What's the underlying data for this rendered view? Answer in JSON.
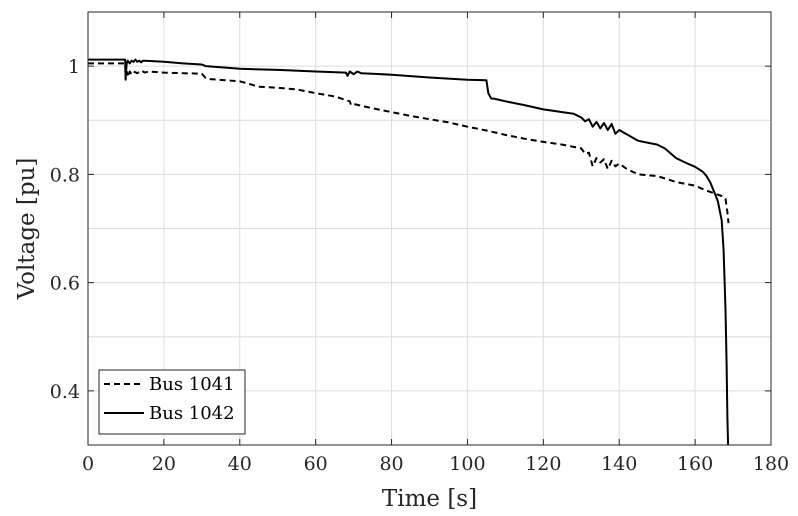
{
  "chart_data": {
    "type": "line",
    "title": "",
    "xlabel": "Time [s]",
    "ylabel": "Voltage [pu]",
    "xlim": [
      0,
      180
    ],
    "ylim": [
      0.3,
      1.1
    ],
    "xticks": [
      "0",
      "20",
      "40",
      "60",
      "80",
      "100",
      "120",
      "140",
      "160",
      "180"
    ],
    "yticks": [
      "0.4",
      "0.6",
      "0.8",
      "1"
    ],
    "grid": true,
    "legend_position": "bottom-left",
    "series": [
      {
        "name": "Bus 1041",
        "style": "dashed",
        "color": "#000000",
        "x": [
          0,
          9.8,
          9.9,
          10.2,
          10.6,
          11,
          11.5,
          12,
          13,
          14,
          15,
          16,
          20,
          25,
          30,
          31,
          32,
          40,
          45,
          50,
          55,
          60,
          65,
          69,
          69.3,
          70,
          75,
          80,
          85,
          90,
          95,
          100,
          105,
          110,
          115,
          120,
          125,
          130,
          131,
          132,
          133,
          134,
          135,
          136,
          137,
          138,
          139,
          140,
          142,
          145,
          150,
          155,
          160,
          163,
          165,
          167,
          168,
          168.5,
          168.8
        ],
        "y": [
          1.005,
          1.005,
          0.975,
          0.99,
          0.98,
          0.99,
          0.985,
          0.99,
          0.987,
          0.992,
          0.988,
          0.99,
          0.988,
          0.987,
          0.986,
          0.978,
          0.976,
          0.972,
          0.962,
          0.96,
          0.957,
          0.95,
          0.944,
          0.935,
          0.928,
          0.93,
          0.922,
          0.915,
          0.908,
          0.902,
          0.896,
          0.888,
          0.881,
          0.873,
          0.866,
          0.86,
          0.855,
          0.848,
          0.838,
          0.84,
          0.815,
          0.83,
          0.822,
          0.828,
          0.81,
          0.825,
          0.815,
          0.82,
          0.81,
          0.8,
          0.797,
          0.786,
          0.779,
          0.77,
          0.765,
          0.76,
          0.755,
          0.73,
          0.71
        ]
      },
      {
        "name": "Bus 1042",
        "style": "solid",
        "color": "#000000",
        "x": [
          0,
          9.8,
          9.9,
          10.2,
          10.5,
          11,
          11.5,
          12,
          12.5,
          13,
          13.5,
          14,
          14.5,
          15,
          20,
          25,
          30,
          31,
          35,
          40,
          50,
          60,
          68,
          68.4,
          69,
          70,
          71,
          72,
          75,
          80,
          90,
          100,
          105,
          105.5,
          106.3,
          107,
          110,
          115,
          120,
          125,
          128,
          130,
          131,
          132,
          133,
          134,
          135,
          136,
          137,
          138,
          139,
          140,
          143,
          145,
          150,
          152,
          155,
          158,
          160,
          162,
          163,
          164,
          165,
          166,
          167,
          167.5,
          168,
          168.3,
          168.5,
          168.7
        ],
        "y": [
          1.012,
          1.012,
          0.98,
          1.005,
          1.01,
          1.005,
          1.01,
          1.008,
          1.012,
          1.008,
          1.01,
          1.007,
          1.01,
          1.01,
          1.008,
          1.005,
          1.003,
          1.0,
          0.998,
          0.995,
          0.993,
          0.99,
          0.988,
          0.982,
          0.99,
          0.985,
          0.99,
          0.987,
          0.986,
          0.984,
          0.979,
          0.975,
          0.974,
          0.95,
          0.94,
          0.94,
          0.935,
          0.928,
          0.92,
          0.915,
          0.912,
          0.905,
          0.898,
          0.902,
          0.888,
          0.897,
          0.885,
          0.895,
          0.882,
          0.893,
          0.875,
          0.882,
          0.87,
          0.862,
          0.855,
          0.848,
          0.83,
          0.82,
          0.814,
          0.805,
          0.797,
          0.785,
          0.768,
          0.75,
          0.715,
          0.66,
          0.55,
          0.45,
          0.35,
          0.3
        ]
      }
    ]
  }
}
